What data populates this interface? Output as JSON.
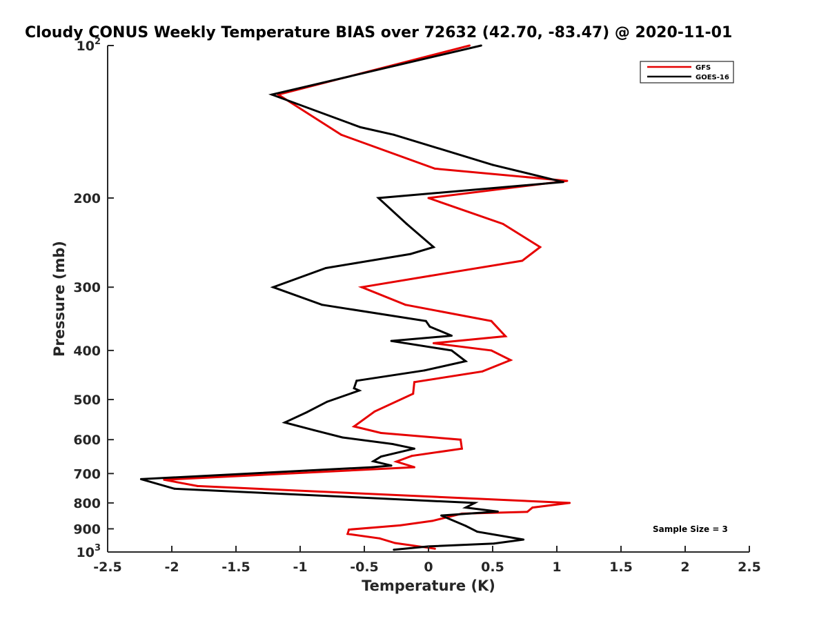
{
  "chart_data": {
    "type": "line",
    "title": "Cloudy CONUS Weekly Temperature BIAS over 72632 (42.70, -83.47) @ 2020-11-01",
    "xlabel": "Temperature (K)",
    "ylabel": "Pressure (mb)",
    "xlim": [
      -2.5,
      2.5
    ],
    "ylim": [
      100,
      1000
    ],
    "yscale": "log",
    "y_reversed": true,
    "grid": false,
    "legend_position": "top-right",
    "x_ticks": [
      "-2.5",
      "-2",
      "-1.5",
      "-1",
      "-0.5",
      "0",
      "0.5",
      "1",
      "1.5",
      "2",
      "2.5"
    ],
    "y_ticks": [
      {
        "value": 100,
        "base": "10",
        "exp": "2"
      },
      {
        "value": 200,
        "label": "200"
      },
      {
        "value": 300,
        "label": "300"
      },
      {
        "value": 400,
        "label": "400"
      },
      {
        "value": 500,
        "label": "500"
      },
      {
        "value": 600,
        "label": "600"
      },
      {
        "value": 700,
        "label": "700"
      },
      {
        "value": 800,
        "label": "800"
      },
      {
        "value": 900,
        "label": "900"
      },
      {
        "value": 1000,
        "base": "10",
        "exp": "3"
      }
    ],
    "series": [
      {
        "name": "GFS",
        "color": "#e60000",
        "points": [
          {
            "x": 0.32,
            "y": 100
          },
          {
            "x": -1.17,
            "y": 125
          },
          {
            "x": -0.68,
            "y": 150
          },
          {
            "x": 0.05,
            "y": 175
          },
          {
            "x": 1.08,
            "y": 185
          },
          {
            "x": 0.0,
            "y": 200
          },
          {
            "x": 0.58,
            "y": 225
          },
          {
            "x": 0.87,
            "y": 250
          },
          {
            "x": 0.73,
            "y": 266
          },
          {
            "x": 0.01,
            "y": 285
          },
          {
            "x": -0.52,
            "y": 300
          },
          {
            "x": -0.18,
            "y": 325
          },
          {
            "x": 0.49,
            "y": 350
          },
          {
            "x": 0.6,
            "y": 375
          },
          {
            "x": 0.04,
            "y": 387
          },
          {
            "x": 0.49,
            "y": 400
          },
          {
            "x": 0.64,
            "y": 418
          },
          {
            "x": 0.42,
            "y": 440
          },
          {
            "x": -0.11,
            "y": 462
          },
          {
            "x": -0.12,
            "y": 487
          },
          {
            "x": -0.42,
            "y": 528
          },
          {
            "x": -0.58,
            "y": 565
          },
          {
            "x": -0.37,
            "y": 582
          },
          {
            "x": 0.25,
            "y": 600
          },
          {
            "x": 0.26,
            "y": 625
          },
          {
            "x": -0.13,
            "y": 646
          },
          {
            "x": -0.25,
            "y": 663
          },
          {
            "x": -0.11,
            "y": 680
          },
          {
            "x": -2.06,
            "y": 720
          },
          {
            "x": -1.8,
            "y": 741
          },
          {
            "x": 1.1,
            "y": 800
          },
          {
            "x": 0.81,
            "y": 817
          },
          {
            "x": 0.77,
            "y": 833
          },
          {
            "x": 0.26,
            "y": 840
          },
          {
            "x": 0.03,
            "y": 868
          },
          {
            "x": -0.22,
            "y": 886
          },
          {
            "x": -0.62,
            "y": 903
          },
          {
            "x": -0.63,
            "y": 921
          },
          {
            "x": -0.38,
            "y": 940
          },
          {
            "x": -0.26,
            "y": 960
          },
          {
            "x": 0.05,
            "y": 985
          }
        ]
      },
      {
        "name": "GOES-16",
        "color": "#000000",
        "points": [
          {
            "x": 0.41,
            "y": 100
          },
          {
            "x": -1.22,
            "y": 125
          },
          {
            "x": -0.53,
            "y": 145
          },
          {
            "x": -0.27,
            "y": 150
          },
          {
            "x": 0.5,
            "y": 172
          },
          {
            "x": 1.05,
            "y": 186
          },
          {
            "x": -0.39,
            "y": 200
          },
          {
            "x": -0.17,
            "y": 225
          },
          {
            "x": 0.04,
            "y": 250
          },
          {
            "x": -0.14,
            "y": 258
          },
          {
            "x": -0.8,
            "y": 275
          },
          {
            "x": -1.21,
            "y": 300
          },
          {
            "x": -0.83,
            "y": 325
          },
          {
            "x": -0.02,
            "y": 350
          },
          {
            "x": 0.01,
            "y": 359
          },
          {
            "x": 0.18,
            "y": 374
          },
          {
            "x": -0.29,
            "y": 383
          },
          {
            "x": 0.18,
            "y": 400
          },
          {
            "x": 0.29,
            "y": 420
          },
          {
            "x": -0.03,
            "y": 438
          },
          {
            "x": -0.56,
            "y": 459
          },
          {
            "x": -0.58,
            "y": 475
          },
          {
            "x": -0.54,
            "y": 480
          },
          {
            "x": -0.79,
            "y": 505
          },
          {
            "x": -0.95,
            "y": 530
          },
          {
            "x": -1.12,
            "y": 555
          },
          {
            "x": -0.89,
            "y": 575
          },
          {
            "x": -0.67,
            "y": 594
          },
          {
            "x": -0.28,
            "y": 612
          },
          {
            "x": -0.11,
            "y": 625
          },
          {
            "x": -0.37,
            "y": 648
          },
          {
            "x": -0.43,
            "y": 662
          },
          {
            "x": -0.29,
            "y": 675
          },
          {
            "x": -0.44,
            "y": 680
          },
          {
            "x": -2.24,
            "y": 718
          },
          {
            "x": -1.98,
            "y": 750
          },
          {
            "x": 0.36,
            "y": 800
          },
          {
            "x": 0.29,
            "y": 817
          },
          {
            "x": 0.54,
            "y": 832
          },
          {
            "x": 0.1,
            "y": 847
          },
          {
            "x": 0.29,
            "y": 888
          },
          {
            "x": 0.38,
            "y": 912
          },
          {
            "x": 0.74,
            "y": 945
          },
          {
            "x": 0.51,
            "y": 962
          },
          {
            "x": 0.0,
            "y": 975
          },
          {
            "x": -0.27,
            "y": 990
          }
        ]
      }
    ],
    "annotation": "Sample Size = 3"
  }
}
